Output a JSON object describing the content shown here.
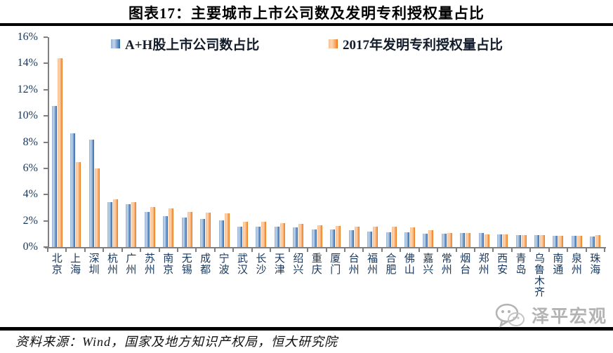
{
  "title": "图表17：主要城市上市公司数及发明专利授权量占比",
  "source": "资料来源：Wind，国家及地方知识产权局，恒大研究院",
  "watermark": "泽平宏观",
  "chart_data": {
    "type": "bar",
    "title": "图表17：主要城市上市公司数及发明专利授权量占比",
    "categories": [
      "北京",
      "上海",
      "深圳",
      "杭州",
      "广州",
      "苏州",
      "南京",
      "无锡",
      "成都",
      "宁波",
      "武汉",
      "长沙",
      "天津",
      "绍兴",
      "重庆",
      "厦门",
      "台州",
      "福州",
      "合肥",
      "佛山",
      "嘉兴",
      "常州",
      "烟台",
      "郑州",
      "西安",
      "青岛",
      "乌鲁木齐",
      "南通",
      "泉州",
      "珠海"
    ],
    "series": [
      {
        "name": "A+H股上市公司数占比",
        "color": "#4F81BD",
        "values": [
          10.75,
          8.65,
          8.2,
          3.4,
          3.25,
          2.65,
          2.35,
          2.25,
          2.15,
          2.05,
          1.55,
          1.55,
          1.55,
          1.5,
          1.35,
          1.35,
          1.3,
          1.2,
          1.15,
          1.15,
          1.0,
          1.0,
          1.05,
          1.05,
          0.95,
          0.9,
          0.9,
          0.85,
          0.85,
          0.8
        ]
      },
      {
        "name": "2017年发明专利授权量占比",
        "color": "#F79646",
        "values": [
          14.4,
          6.5,
          6.0,
          3.65,
          3.4,
          3.05,
          2.95,
          2.7,
          2.6,
          2.55,
          1.95,
          1.9,
          1.8,
          1.75,
          1.65,
          1.6,
          1.55,
          1.55,
          1.55,
          1.5,
          1.3,
          1.05,
          1.05,
          0.95,
          0.95,
          0.9,
          0.9,
          0.85,
          0.85,
          0.9
        ]
      }
    ],
    "xlabel": "",
    "ylabel": "",
    "ylim": [
      0,
      16
    ],
    "ytick_step": 2,
    "ytick_format": "percent",
    "grid": false,
    "legend_position": "top"
  }
}
